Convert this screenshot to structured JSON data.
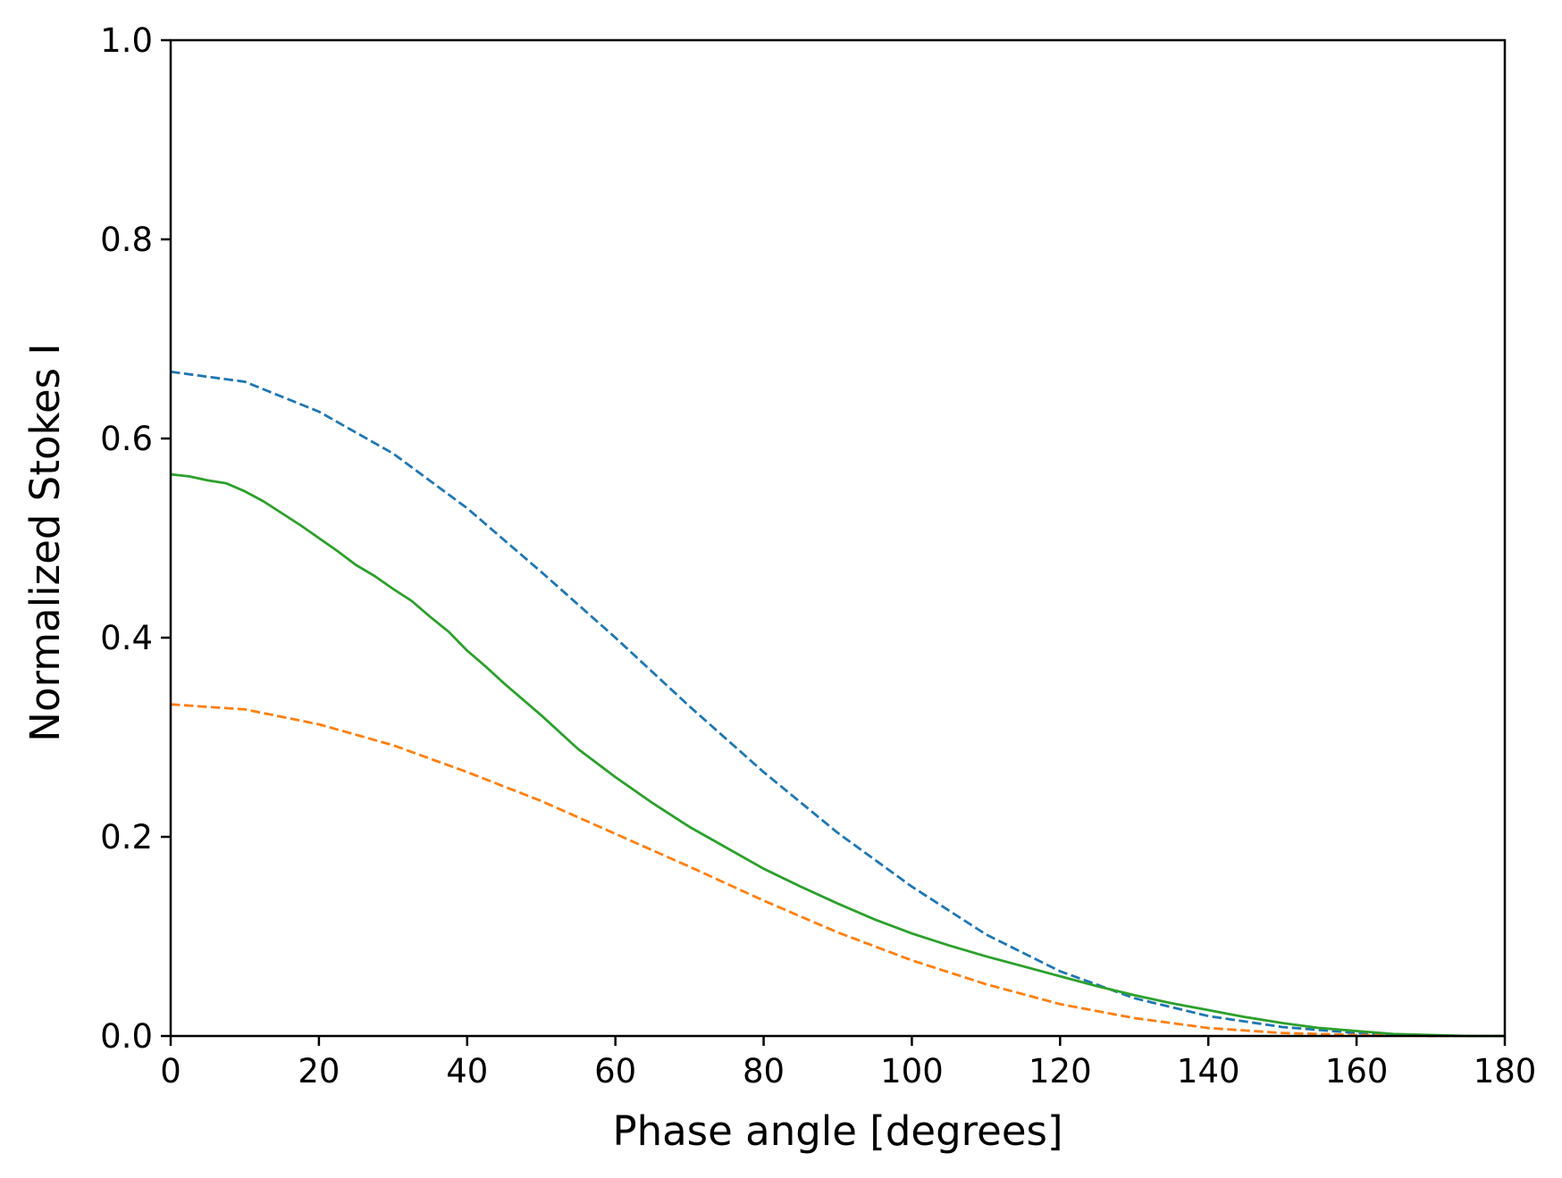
{
  "chart_data": {
    "type": "line",
    "title": "",
    "xlabel": "Phase angle [degrees]",
    "ylabel": "Normalized Stokes I",
    "xlim": [
      0,
      180
    ],
    "ylim": [
      0.0,
      1.0
    ],
    "xticks": [
      0,
      20,
      40,
      60,
      80,
      100,
      120,
      140,
      160,
      180
    ],
    "xtick_labels": [
      "0",
      "20",
      "40",
      "60",
      "80",
      "100",
      "120",
      "140",
      "160",
      "180"
    ],
    "yticks": [
      0.0,
      0.2,
      0.4,
      0.6,
      0.8,
      1.0
    ],
    "ytick_labels": [
      "0.0",
      "0.2",
      "0.4",
      "0.6",
      "0.8",
      "1.0"
    ],
    "grid": false,
    "legend": false,
    "series": [
      {
        "color": "#1f77b4",
        "dash": "dashed",
        "x": [
          0,
          10,
          20,
          30,
          40,
          50,
          60,
          70,
          80,
          90,
          100,
          110,
          120,
          130,
          140,
          150,
          160,
          170,
          180
        ],
        "y": [
          0.667,
          0.657,
          0.627,
          0.585,
          0.53,
          0.466,
          0.4,
          0.331,
          0.265,
          0.204,
          0.15,
          0.102,
          0.065,
          0.038,
          0.02,
          0.009,
          0.003,
          0.0,
          0.0
        ]
      },
      {
        "color": "#ff7f0e",
        "dash": "dashed",
        "x": [
          0,
          10,
          20,
          30,
          40,
          50,
          60,
          70,
          80,
          90,
          100,
          110,
          120,
          130,
          140,
          150,
          160,
          170,
          180
        ],
        "y": [
          0.333,
          0.328,
          0.313,
          0.292,
          0.265,
          0.236,
          0.203,
          0.17,
          0.136,
          0.104,
          0.076,
          0.052,
          0.032,
          0.018,
          0.008,
          0.003,
          0.001,
          0.0,
          0.0
        ]
      },
      {
        "color": "#2ca02c",
        "dash": "solid",
        "x": [
          0,
          2.5,
          5,
          7.5,
          10,
          12.5,
          15,
          17.5,
          20,
          22.5,
          25,
          27.5,
          30,
          32.5,
          35,
          37.5,
          40,
          42.5,
          45,
          50,
          55,
          60,
          65,
          70,
          75,
          80,
          85,
          90,
          95,
          100,
          105,
          110,
          115,
          120,
          125,
          130,
          135,
          140,
          145,
          150,
          155,
          160,
          165,
          170,
          175,
          180
        ],
        "y": [
          0.564,
          0.562,
          0.558,
          0.555,
          0.547,
          0.537,
          0.525,
          0.513,
          0.5,
          0.487,
          0.473,
          0.462,
          0.449,
          0.437,
          0.421,
          0.406,
          0.387,
          0.371,
          0.354,
          0.322,
          0.288,
          0.26,
          0.234,
          0.21,
          0.189,
          0.168,
          0.15,
          0.133,
          0.117,
          0.103,
          0.091,
          0.08,
          0.07,
          0.06,
          0.05,
          0.041,
          0.033,
          0.026,
          0.019,
          0.013,
          0.008,
          0.005,
          0.002,
          0.001,
          0.0,
          0.0
        ]
      }
    ]
  }
}
